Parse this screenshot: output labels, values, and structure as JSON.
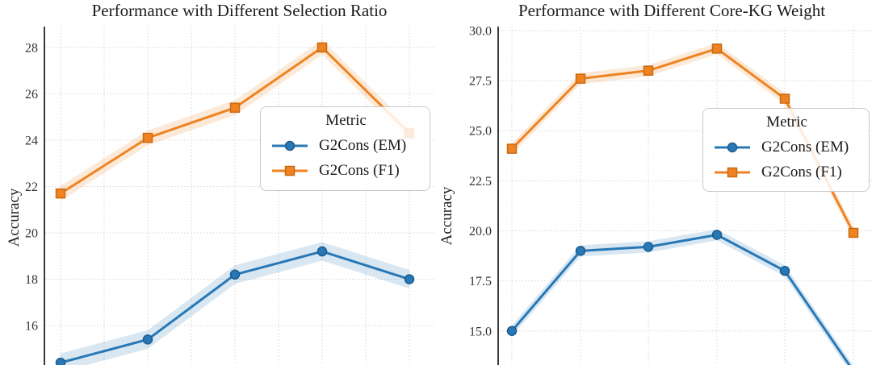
{
  "figure": {
    "background": "#ffffff",
    "grid_color": "#d4d4d4",
    "spine_color": "#3a3a3a",
    "text_color": "#1c1c1c"
  },
  "chart_data": [
    {
      "type": "line",
      "title": "Performance with Different Selection Ratio",
      "xlabel": "",
      "ylabel": "Accuracy",
      "ylim": [
        14.3,
        28.9
      ],
      "ytick_values": [
        16,
        18,
        20,
        22,
        24,
        26,
        28
      ],
      "ytick_labels": [
        "16",
        "18",
        "20",
        "22",
        "24",
        "26",
        "28"
      ],
      "grid": true,
      "legend": {
        "title": "Metric",
        "position": "center-right"
      },
      "series": [
        {
          "name": "G2Cons (EM)",
          "marker": "circle",
          "color": "#2878b5",
          "marker_edge": "#1b5c8e",
          "band_color": "rgba(40,120,181,0.18)",
          "band_halfwidth": 0.4,
          "values": [
            14.4,
            15.4,
            18.2,
            19.2,
            18.0
          ]
        },
        {
          "name": "G2Cons (F1)",
          "marker": "square",
          "color": "#ef8322",
          "marker_edge": "#c96a10",
          "band_color": "rgba(239,131,34,0.18)",
          "band_halfwidth": 0.32,
          "values": [
            21.7,
            24.1,
            25.4,
            28.0,
            24.3
          ]
        }
      ]
    },
    {
      "type": "line",
      "title": "Performance with Different Core-KG Weight",
      "xlabel": "",
      "ylabel": "Accuracy",
      "ylim": [
        13.3,
        30.2
      ],
      "ytick_values": [
        15.0,
        17.5,
        20.0,
        22.5,
        25.0,
        27.5,
        30.0
      ],
      "ytick_labels": [
        "15.0",
        "17.5",
        "20.0",
        "22.5",
        "25.0",
        "27.5",
        "30.0"
      ],
      "grid": true,
      "legend": {
        "title": "Metric",
        "position": "center-right"
      },
      "series": [
        {
          "name": "G2Cons (EM)",
          "marker": "circle",
          "color": "#2878b5",
          "marker_edge": "#1b5c8e",
          "band_color": "rgba(40,120,181,0.18)",
          "band_halfwidth": 0.28,
          "values": [
            15.0,
            19.0,
            19.2,
            19.8,
            18.0,
            13.0
          ]
        },
        {
          "name": "G2Cons (F1)",
          "marker": "square",
          "color": "#ef8322",
          "marker_edge": "#c96a10",
          "band_color": "rgba(239,131,34,0.18)",
          "band_halfwidth": 0.28,
          "values": [
            24.1,
            27.6,
            28.0,
            29.1,
            26.6,
            19.9
          ]
        }
      ]
    }
  ]
}
